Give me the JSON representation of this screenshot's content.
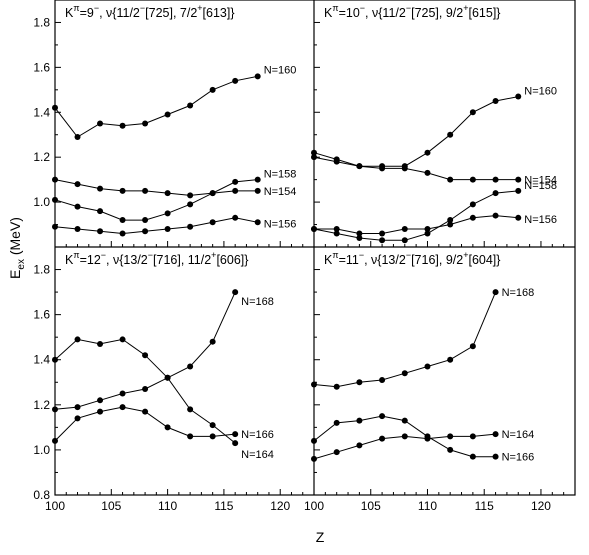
{
  "chart_data": {
    "type": "line",
    "xlabel": "Z",
    "ylabel": "E_ex (MeV)",
    "ylabel_main": "E",
    "ylabel_sub": "ex",
    "ylabel_unit": " (MeV)",
    "x_ticks": [
      "100",
      "105",
      "110",
      "115",
      "120"
    ],
    "y_ticks_top": [
      "1.0",
      "1.2",
      "1.4",
      "1.6",
      "1.8"
    ],
    "y_ticks_bottom": [
      "0.8",
      "1.0",
      "1.2",
      "1.4",
      "1.6",
      "1.8"
    ],
    "xlim": [
      100,
      123
    ],
    "panels": [
      {
        "position": "top-left",
        "title": {
          "K": "K",
          "pi": "π",
          "keq": "=9",
          "kpar": "−",
          "nu": ", ν{11/2",
          "s1": "−",
          "m1": "[725], 7/2",
          "s2": "+",
          "m2": "[613]}"
        },
        "ylim": [
          0.8,
          1.9
        ],
        "series": [
          {
            "name": "N=160",
            "x": [
              100,
              102,
              104,
              106,
              108,
              110,
              112,
              114,
              116,
              118
            ],
            "y": [
              1.42,
              1.29,
              1.35,
              1.34,
              1.35,
              1.39,
              1.43,
              1.5,
              1.54,
              1.56
            ]
          },
          {
            "name": "N=158",
            "x": [
              100,
              102,
              104,
              106,
              108,
              110,
              112,
              114,
              116,
              118
            ],
            "y": [
              1.1,
              1.08,
              1.06,
              1.05,
              1.05,
              1.04,
              1.03,
              1.04,
              1.09,
              1.1
            ]
          },
          {
            "name": "N=154",
            "x": [
              100,
              102,
              104,
              106,
              108,
              110,
              112,
              114,
              116,
              118
            ],
            "y": [
              1.01,
              0.98,
              0.96,
              0.92,
              0.92,
              0.95,
              0.99,
              1.04,
              1.05,
              1.05
            ]
          },
          {
            "name": "N=156",
            "x": [
              100,
              102,
              104,
              106,
              108,
              110,
              112,
              114,
              116,
              118
            ],
            "y": [
              0.89,
              0.88,
              0.87,
              0.86,
              0.87,
              0.88,
              0.89,
              0.91,
              0.93,
              0.91
            ]
          }
        ]
      },
      {
        "position": "top-right",
        "title": {
          "K": "K",
          "pi": "π",
          "keq": "=10",
          "kpar": "−",
          "nu": ", ν{11/2",
          "s1": "−",
          "m1": "[725], 9/2",
          "s2": "+",
          "m2": "[615]}"
        },
        "ylim": [
          0.8,
          1.9
        ],
        "series": [
          {
            "name": "N=160",
            "x": [
              100,
              102,
              104,
              106,
              108,
              110,
              112,
              114,
              116,
              118
            ],
            "y": [
              1.22,
              1.19,
              1.16,
              1.16,
              1.16,
              1.22,
              1.3,
              1.4,
              1.45,
              1.47
            ]
          },
          {
            "name": "N=154",
            "x": [
              100,
              102,
              104,
              106,
              108,
              110,
              112,
              114,
              116,
              118
            ],
            "y": [
              1.2,
              1.18,
              1.16,
              1.15,
              1.15,
              1.13,
              1.1,
              1.1,
              1.1,
              1.1
            ]
          },
          {
            "name": "N=158",
            "x": [
              100,
              102,
              104,
              106,
              108,
              110,
              112,
              114,
              116,
              118
            ],
            "y": [
              0.88,
              0.86,
              0.84,
              0.83,
              0.83,
              0.86,
              0.92,
              0.99,
              1.04,
              1.05
            ]
          },
          {
            "name": "N=156",
            "x": [
              100,
              102,
              104,
              106,
              108,
              110,
              112,
              114,
              116,
              118
            ],
            "y": [
              0.88,
              0.88,
              0.86,
              0.86,
              0.88,
              0.88,
              0.9,
              0.93,
              0.94,
              0.93
            ]
          }
        ]
      },
      {
        "position": "bottom-left",
        "title": {
          "K": "K",
          "pi": "π",
          "keq": "=12",
          "kpar": "−",
          "nu": ", ν{13/2",
          "s1": "−",
          "m1": "[716], 11/2",
          "s2": "+",
          "m2": "[606]}"
        },
        "ylim": [
          0.8,
          1.9
        ],
        "series": [
          {
            "name": "N=168",
            "x": [
              100,
              102,
              104,
              106,
              108,
              110,
              112,
              114,
              116
            ],
            "y": [
              1.4,
              1.49,
              1.47,
              1.49,
              1.42,
              1.32,
              1.18,
              1.11,
              1.03
            ]
          },
          {
            "name": "N=166",
            "x": [
              100,
              102,
              104,
              106,
              108,
              110,
              112,
              114,
              116
            ],
            "y": [
              1.18,
              1.19,
              1.22,
              1.25,
              1.27,
              1.32,
              1.37,
              1.48,
              1.7
            ]
          },
          {
            "name": "N=164",
            "x": [
              100,
              102,
              104,
              106,
              108,
              110,
              112,
              114,
              116
            ],
            "y": [
              1.04,
              1.14,
              1.17,
              1.19,
              1.17,
              1.1,
              1.06,
              1.06,
              1.07
            ]
          }
        ]
      },
      {
        "position": "bottom-right",
        "title": {
          "K": "K",
          "pi": "π",
          "keq": "=11",
          "kpar": "−",
          "nu": ", ν{13/2",
          "s1": "−",
          "m1": "[716], 9/2",
          "s2": "+",
          "m2": "[604]}"
        },
        "ylim": [
          0.8,
          1.9
        ],
        "series": [
          {
            "name": "N=168",
            "x": [
              100,
              102,
              104,
              106,
              108,
              110,
              112,
              114,
              116
            ],
            "y": [
              1.29,
              1.28,
              1.3,
              1.31,
              1.34,
              1.37,
              1.4,
              1.46,
              1.7
            ]
          },
          {
            "name": "N=166",
            "x": [
              100,
              102,
              104,
              106,
              108,
              110,
              112,
              114,
              116
            ],
            "y": [
              1.04,
              1.12,
              1.13,
              1.15,
              1.13,
              1.06,
              1.0,
              0.97,
              0.97
            ]
          },
          {
            "name": "N=164",
            "x": [
              100,
              102,
              104,
              106,
              108,
              110,
              112,
              114,
              116
            ],
            "y": [
              0.96,
              0.99,
              1.02,
              1.05,
              1.06,
              1.05,
              1.06,
              1.06,
              1.07
            ]
          }
        ]
      }
    ]
  }
}
